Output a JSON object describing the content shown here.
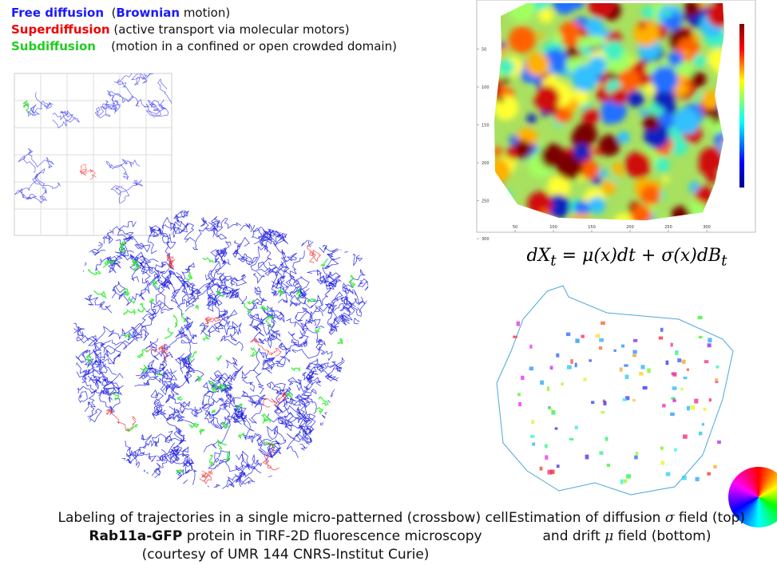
{
  "legend": [
    {
      "term": "Free diffusion",
      "parts": [
        "(",
        "Brownian",
        " motion)"
      ]
    },
    {
      "term": "Superdiffusion",
      "parts": [
        "(active transport via molecular motors)"
      ]
    },
    {
      "term": "Subdiffusion",
      "parts": [
        "(motion in a confined or open crowded domain)"
      ]
    }
  ],
  "left_caption": {
    "line1": "Labeling of trajectories in a single micro-patterned (crossbow) cell:",
    "line2_bold": "Rab11a-GFP",
    "line2_rest": " protein in TIRF-2D fluorescence microscopy",
    "line3": "(courtesy of UMR 144 CNRS-Institut Curie)"
  },
  "equation": {
    "a": "dX",
    "a_sub": "t",
    "b": " = μ(x)dt + σ(x)dB",
    "b_sub": "t"
  },
  "heatmap": {
    "xticks": [
      50,
      100,
      150,
      200,
      250,
      300
    ],
    "yticks": [
      50,
      100,
      150,
      200,
      250,
      300
    ]
  },
  "right_caption": {
    "line1_a": "Estimation of diffusion ",
    "line1_sym": "σ",
    "line1_b": " field (top)",
    "line2_a": "and drift ",
    "line2_sym": "μ",
    "line2_b": " field (bottom)"
  }
}
